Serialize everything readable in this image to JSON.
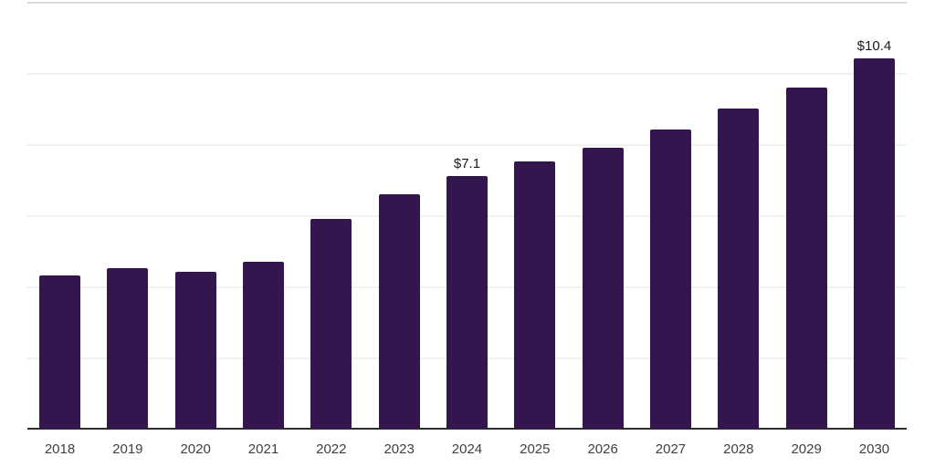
{
  "chart_data": {
    "type": "bar",
    "title": "",
    "xlabel": "",
    "ylabel": "",
    "categories": [
      "2018",
      "2019",
      "2020",
      "2021",
      "2022",
      "2023",
      "2024",
      "2025",
      "2026",
      "2027",
      "2028",
      "2029",
      "2030"
    ],
    "values": [
      4.3,
      4.5,
      4.4,
      4.7,
      5.9,
      6.6,
      7.1,
      7.5,
      7.9,
      8.4,
      9.0,
      9.6,
      10.4
    ],
    "point_labels": [
      "",
      "",
      "",
      "",
      "",
      "",
      "$7.1",
      "",
      "",
      "",
      "",
      "",
      "$10.4"
    ],
    "ylim": [
      0,
      12
    ],
    "grid_step": 2,
    "grid": "horizontal-only, no y tick labels",
    "legend": "none",
    "bar_color": "#34164e",
    "grid_color": "#f1f1f1",
    "top_grid_color": "#d9d9d9",
    "axis_color": "#2e2e2e",
    "tick_label_color": "#404040",
    "value_label_color": "#1a1a1a"
  }
}
